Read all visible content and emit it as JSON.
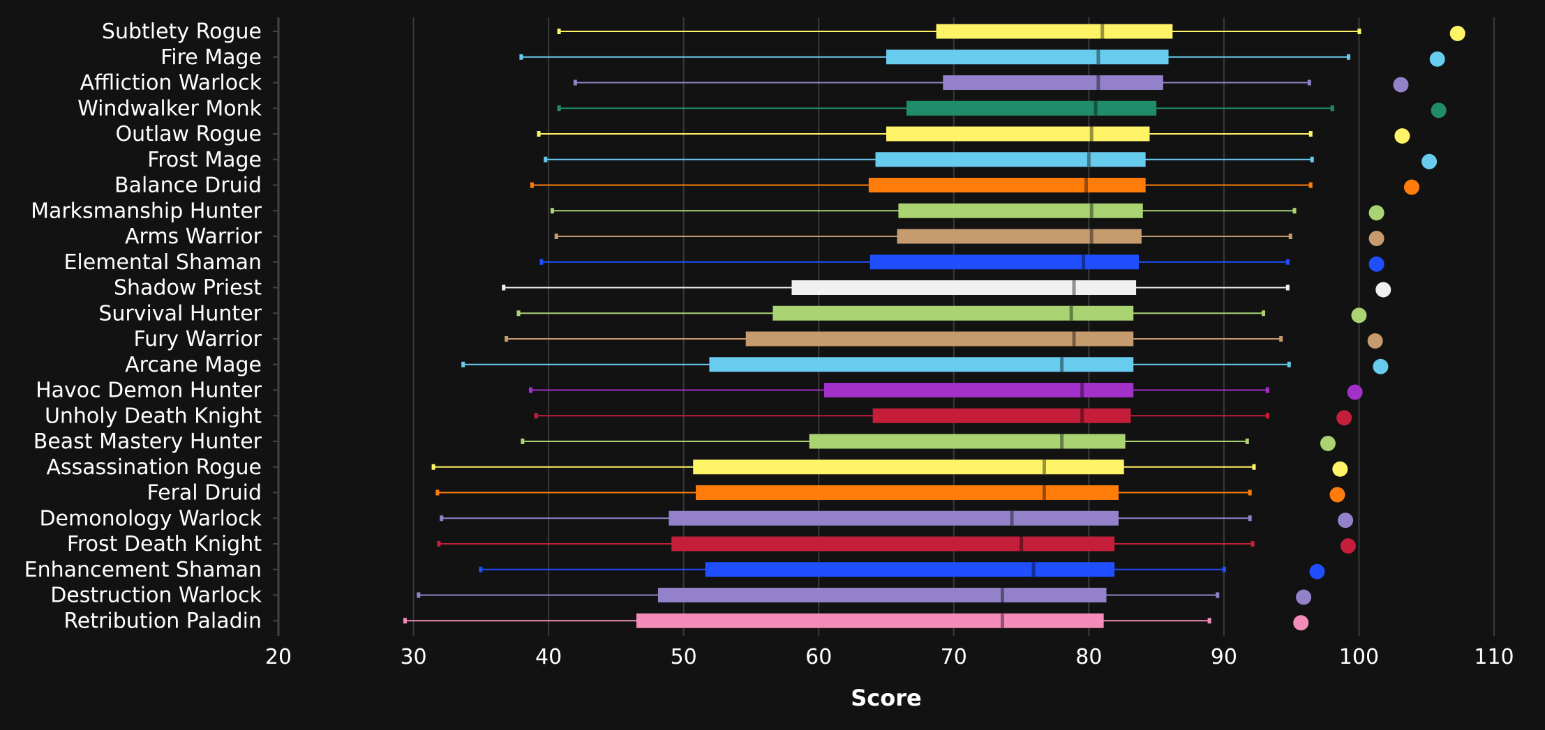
{
  "chart_data": {
    "type": "box",
    "xlabel": "Score",
    "xlim": [
      20,
      110
    ],
    "x_ticks": [
      20,
      30,
      40,
      50,
      60,
      70,
      80,
      90,
      100,
      110
    ],
    "x_tick_labels": [
      "20",
      "30",
      "40",
      "50",
      "60",
      "70",
      "80",
      "90",
      "100",
      "110"
    ],
    "grid": "vertical",
    "background": "#121212",
    "series": [
      {
        "name": "Subtlety Rogue",
        "color": "#FFF468",
        "whisker_low": 40.8,
        "q1": 68.7,
        "median": 81.0,
        "q3": 86.2,
        "whisker_high": 100.0,
        "max": 107.3
      },
      {
        "name": "Fire Mage",
        "color": "#68CCEF",
        "whisker_low": 38.0,
        "q1": 65.0,
        "median": 80.7,
        "q3": 85.9,
        "whisker_high": 99.2,
        "max": 105.8
      },
      {
        "name": "Affliction Warlock",
        "color": "#9382C9",
        "whisker_low": 42.0,
        "q1": 69.2,
        "median": 80.7,
        "q3": 85.5,
        "whisker_high": 96.3,
        "max": 103.1
      },
      {
        "name": "Windwalker Monk",
        "color": "#208C6B",
        "whisker_low": 40.8,
        "q1": 66.5,
        "median": 80.5,
        "q3": 85.0,
        "whisker_high": 98.0,
        "max": 105.9
      },
      {
        "name": "Outlaw Rogue",
        "color": "#FFF468",
        "whisker_low": 39.3,
        "q1": 65.0,
        "median": 80.2,
        "q3": 84.5,
        "whisker_high": 96.4,
        "max": 103.2
      },
      {
        "name": "Frost Mage",
        "color": "#68CCEF",
        "whisker_low": 39.8,
        "q1": 64.2,
        "median": 80.0,
        "q3": 84.2,
        "whisker_high": 96.5,
        "max": 105.2
      },
      {
        "name": "Balance Druid",
        "color": "#FF7C0A",
        "whisker_low": 38.8,
        "q1": 63.7,
        "median": 79.8,
        "q3": 84.2,
        "whisker_high": 96.4,
        "max": 103.9
      },
      {
        "name": "Marksmanship Hunter",
        "color": "#AAD372",
        "whisker_low": 40.3,
        "q1": 65.9,
        "median": 80.2,
        "q3": 84.0,
        "whisker_high": 95.2,
        "max": 101.3
      },
      {
        "name": "Arms Warrior",
        "color": "#C69B6D",
        "whisker_low": 40.6,
        "q1": 65.8,
        "median": 80.2,
        "q3": 83.9,
        "whisker_high": 94.9,
        "max": 101.3
      },
      {
        "name": "Elemental Shaman",
        "color": "#1F4FFF",
        "whisker_low": 39.5,
        "q1": 63.8,
        "median": 79.6,
        "q3": 83.7,
        "whisker_high": 94.7,
        "max": 101.3
      },
      {
        "name": "Shadow Priest",
        "color": "#F0F0F0",
        "whisker_low": 36.7,
        "q1": 58.0,
        "median": 78.9,
        "q3": 83.5,
        "whisker_high": 94.7,
        "max": 101.8
      },
      {
        "name": "Survival Hunter",
        "color": "#AAD372",
        "whisker_low": 37.8,
        "q1": 56.6,
        "median": 78.7,
        "q3": 83.3,
        "whisker_high": 92.9,
        "max": 100.0
      },
      {
        "name": "Fury Warrior",
        "color": "#C69B6D",
        "whisker_low": 36.9,
        "q1": 54.6,
        "median": 78.9,
        "q3": 83.3,
        "whisker_high": 94.2,
        "max": 101.2
      },
      {
        "name": "Arcane Mage",
        "color": "#68CCEF",
        "whisker_low": 33.7,
        "q1": 51.9,
        "median": 78.0,
        "q3": 83.3,
        "whisker_high": 94.8,
        "max": 101.6
      },
      {
        "name": "Havoc Demon Hunter",
        "color": "#A330C9",
        "whisker_low": 38.7,
        "q1": 60.4,
        "median": 79.5,
        "q3": 83.3,
        "whisker_high": 93.2,
        "max": 99.7
      },
      {
        "name": "Unholy Death Knight",
        "color": "#C41E3A",
        "whisker_low": 39.1,
        "q1": 64.0,
        "median": 79.5,
        "q3": 83.1,
        "whisker_high": 93.2,
        "max": 98.9
      },
      {
        "name": "Beast Mastery Hunter",
        "color": "#AAD372",
        "whisker_low": 38.1,
        "q1": 59.3,
        "median": 78.0,
        "q3": 82.7,
        "whisker_high": 91.7,
        "max": 97.7
      },
      {
        "name": "Assassination Rogue",
        "color": "#FFF468",
        "whisker_low": 31.5,
        "q1": 50.7,
        "median": 76.7,
        "q3": 82.6,
        "whisker_high": 92.2,
        "max": 98.6
      },
      {
        "name": "Feral Druid",
        "color": "#FF7C0A",
        "whisker_low": 31.8,
        "q1": 50.9,
        "median": 76.7,
        "q3": 82.2,
        "whisker_high": 91.9,
        "max": 98.4
      },
      {
        "name": "Demonology Warlock",
        "color": "#9382C9",
        "whisker_low": 32.1,
        "q1": 48.9,
        "median": 74.3,
        "q3": 82.2,
        "whisker_high": 91.9,
        "max": 99.0
      },
      {
        "name": "Frost Death Knight",
        "color": "#C41E3A",
        "whisker_low": 31.9,
        "q1": 49.1,
        "median": 75.0,
        "q3": 81.9,
        "whisker_high": 92.1,
        "max": 99.2
      },
      {
        "name": "Enhancement Shaman",
        "color": "#1F4FFF",
        "whisker_low": 35.0,
        "q1": 51.6,
        "median": 75.9,
        "q3": 81.9,
        "whisker_high": 90.0,
        "max": 96.9
      },
      {
        "name": "Destruction Warlock",
        "color": "#9382C9",
        "whisker_low": 30.4,
        "q1": 48.1,
        "median": 73.6,
        "q3": 81.3,
        "whisker_high": 89.5,
        "max": 95.9
      },
      {
        "name": "Retribution Paladin",
        "color": "#F48CBA",
        "whisker_low": 29.4,
        "q1": 46.5,
        "median": 73.6,
        "q3": 81.1,
        "whisker_high": 88.9,
        "max": 95.7
      }
    ]
  }
}
